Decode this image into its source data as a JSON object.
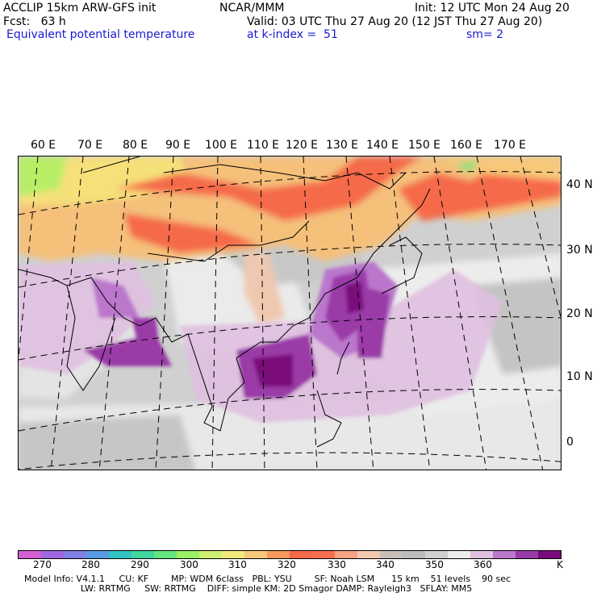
{
  "header": {
    "line1_left": "ACCLIP 15km ARW-GFS init",
    "line1_center": "NCAR/MMM",
    "line1_right": "Init: 12 UTC Mon 24 Aug 20",
    "line2_left": "Fcst:   63 h",
    "line2_right": "Valid: 03 UTC Thu 27 Aug 20 (12 JST Thu 27 Aug 20)",
    "line3_field": "Equivalent potential temperature",
    "line3_level": "at k-index =  51",
    "line3_smooth": "sm= 2"
  },
  "map": {
    "lon_labels": [
      "60 E",
      "70 E",
      "80 E",
      "90 E",
      "100 E",
      "110 E",
      "120 E",
      "130 E",
      "140 E",
      "150 E",
      "160 E",
      "170 E"
    ],
    "lat_labels": [
      "40 N",
      "30 N",
      "20 N",
      "10 N",
      "0"
    ]
  },
  "colorbar": {
    "colors": [
      "#d45fd4",
      "#a066e0",
      "#8080e6",
      "#5a9be6",
      "#33c2c2",
      "#40d6a0",
      "#66e680",
      "#99ef66",
      "#cdf070",
      "#f5e87a",
      "#f7c77a",
      "#f59a5a",
      "#f56a4a",
      "#f5704f",
      "#f5a285",
      "#f0c8b0",
      "#c8c0b8",
      "#bbbbbb",
      "#d0d0d0",
      "#ececec",
      "#e0c0e0",
      "#bb77cc",
      "#9a3aa8",
      "#7a0a7a"
    ],
    "labels": [
      "270",
      "280",
      "290",
      "300",
      "310",
      "320",
      "330",
      "340",
      "350",
      "360"
    ],
    "unit": "K"
  },
  "footer": {
    "line1": "Model Info: V4.1.1     CU: KF        MP: WDM 6class   PBL: YSU        SF: Noah LSM      15 km    51 levels    90 sec",
    "line2": "                    LW: RRTMG     SW: RRTMG    DIFF: simple KM: 2D Smagor DAMP: Rayleigh3   SFLAY: MM5"
  }
}
